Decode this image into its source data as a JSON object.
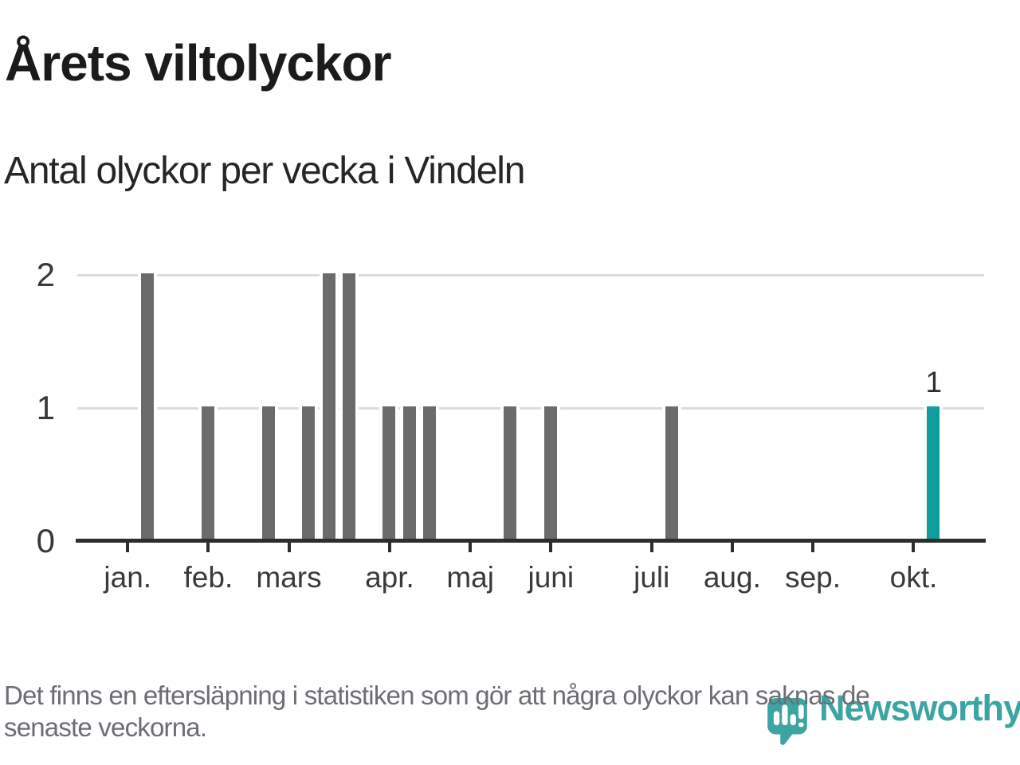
{
  "header": {
    "title": "Årets viltolyckor",
    "subtitle": "Antal olyckor per vecka i Vindeln"
  },
  "footer": {
    "lines": [
      "Det finns en eftersläpning i statistiken som gör att några olyckor kan saknas de",
      "senaste veckorna."
    ]
  },
  "logo": {
    "wordmark": "Newsworthy",
    "icon": "newsworthy-speech-bubble-chart-icon",
    "color": "#3CA5A1"
  },
  "chart_data": {
    "type": "bar",
    "title": "Årets viltolyckor",
    "subtitle": "Antal olyckor per vecka i Vindeln",
    "x_unit": "week",
    "weeks_shown": 45,
    "values": [
      0,
      0,
      0,
      2,
      0,
      0,
      1,
      0,
      0,
      1,
      0,
      1,
      2,
      2,
      0,
      1,
      1,
      1,
      0,
      0,
      0,
      1,
      0,
      1,
      0,
      0,
      0,
      0,
      0,
      1,
      0,
      0,
      0,
      0,
      0,
      0,
      0,
      0,
      0,
      0,
      0,
      0,
      1,
      0,
      0
    ],
    "highlight": {
      "slot": 43,
      "value": 1,
      "label": "1"
    },
    "month_ticks": [
      {
        "label": "jan.",
        "slot": 3
      },
      {
        "label": "feb.",
        "slot": 7
      },
      {
        "label": "mars",
        "slot": 11
      },
      {
        "label": "apr.",
        "slot": 16
      },
      {
        "label": "maj",
        "slot": 20
      },
      {
        "label": "juni",
        "slot": 24
      },
      {
        "label": "juli",
        "slot": 29
      },
      {
        "label": "aug.",
        "slot": 33
      },
      {
        "label": "sep.",
        "slot": 37
      },
      {
        "label": "okt.",
        "slot": 42
      }
    ],
    "yticks": [
      0,
      1,
      2
    ],
    "ylim": [
      0,
      2
    ],
    "grid": "horizontal",
    "legend": "none",
    "colors": {
      "bar": "#6B6B6B",
      "highlight": "#0D9D9B",
      "grid": "#DCDCDC",
      "axis": "#2D2D2D",
      "tick_label": "#3A3A3A"
    }
  }
}
